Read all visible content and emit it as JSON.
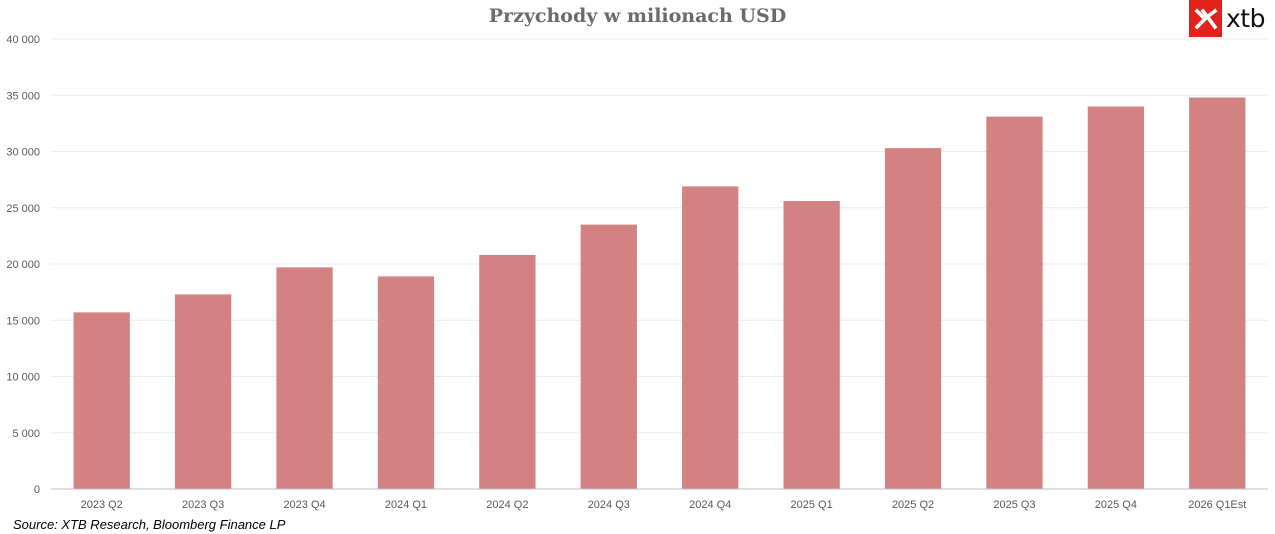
{
  "logo": {
    "text": "xtb",
    "brand_color": "#e2231a"
  },
  "source_note": "Source: XTB Research, Bloomberg Finance LP",
  "chart_data": {
    "type": "bar",
    "title": "Przychody w milionach USD",
    "xlabel": "",
    "ylabel": "",
    "categories": [
      "2023 Q2",
      "2023 Q3",
      "2023 Q4",
      "2024 Q1",
      "2024 Q2",
      "2024 Q3",
      "2024 Q4",
      "2025 Q1",
      "2025 Q2",
      "2025 Q3",
      "2025 Q4",
      "2026 Q1Est"
    ],
    "values": [
      15700,
      17300,
      19700,
      18900,
      20800,
      23500,
      26900,
      25600,
      30300,
      33100,
      34000,
      34800
    ],
    "ylim": [
      0,
      40000
    ],
    "yticks": [
      0,
      5000,
      10000,
      15000,
      20000,
      25000,
      30000,
      35000,
      40000
    ],
    "ytick_labels": [
      "0",
      "5 000",
      "10 000",
      "15 000",
      "20 000",
      "25 000",
      "30 000",
      "35 000",
      "40 000"
    ],
    "grid": true,
    "legend": "none",
    "bar_color": "#d38281",
    "grid_color": "#ececec",
    "axis_color": "#bfbfbf"
  }
}
